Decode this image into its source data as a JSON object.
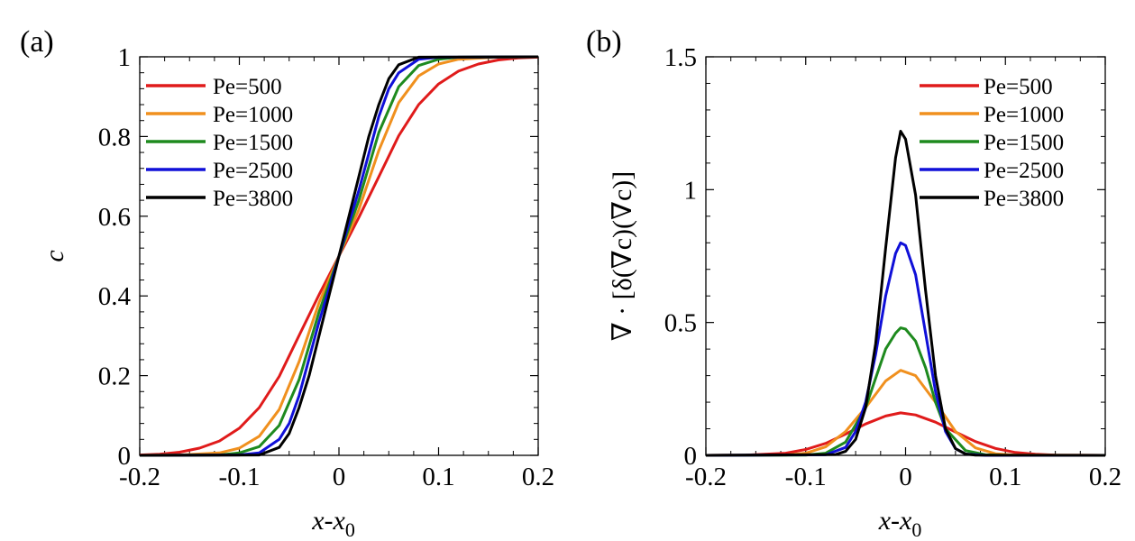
{
  "chart_data": [
    {
      "panel_label": "(a)",
      "type": "line",
      "xlabel": "x-x",
      "xlabel_sub": "0",
      "ylabel": "c",
      "xlim": [
        -0.2,
        0.2
      ],
      "ylim": [
        0,
        1
      ],
      "xticks": [
        "-0.2",
        "-0.1",
        "0",
        "0.1",
        "0.2"
      ],
      "yticks": [
        "0",
        "0.2",
        "0.4",
        "0.6",
        "0.8",
        "1"
      ],
      "legend": "top-left",
      "series": [
        {
          "name": "Pe=500",
          "color": "#e01b1b",
          "x": [
            -0.2,
            -0.18,
            -0.16,
            -0.14,
            -0.12,
            -0.1,
            -0.08,
            -0.06,
            -0.04,
            -0.02,
            0,
            0.02,
            0.04,
            0.06,
            0.08,
            0.1,
            0.12,
            0.14,
            0.16,
            0.18,
            0.2
          ],
          "y": [
            0.001,
            0.003,
            0.008,
            0.018,
            0.036,
            0.068,
            0.12,
            0.198,
            0.301,
            0.403,
            0.5,
            0.597,
            0.699,
            0.802,
            0.88,
            0.932,
            0.964,
            0.982,
            0.992,
            0.997,
            0.999
          ]
        },
        {
          "name": "Pe=1000",
          "color": "#f0901e",
          "x": [
            -0.2,
            -0.16,
            -0.12,
            -0.1,
            -0.08,
            -0.06,
            -0.04,
            -0.02,
            0,
            0.02,
            0.04,
            0.06,
            0.08,
            0.1,
            0.12,
            0.16,
            0.2
          ],
          "y": [
            0,
            0.001,
            0.006,
            0.018,
            0.048,
            0.115,
            0.235,
            0.383,
            0.5,
            0.617,
            0.765,
            0.885,
            0.952,
            0.982,
            0.994,
            0.999,
            1
          ]
        },
        {
          "name": "Pe=1500",
          "color": "#1e8a1e",
          "x": [
            -0.2,
            -0.12,
            -0.1,
            -0.08,
            -0.06,
            -0.04,
            -0.02,
            0,
            0.02,
            0.04,
            0.06,
            0.08,
            0.1,
            0.12,
            0.2
          ],
          "y": [
            0,
            0.001,
            0.006,
            0.022,
            0.075,
            0.19,
            0.36,
            0.5,
            0.64,
            0.81,
            0.925,
            0.978,
            0.994,
            0.999,
            1
          ]
        },
        {
          "name": "Pe=2500",
          "color": "#1010d8",
          "x": [
            -0.2,
            -0.1,
            -0.08,
            -0.06,
            -0.05,
            -0.04,
            -0.02,
            0,
            0.02,
            0.04,
            0.05,
            0.06,
            0.08,
            0.1,
            0.2
          ],
          "y": [
            0,
            0.001,
            0.006,
            0.04,
            0.08,
            0.15,
            0.335,
            0.5,
            0.665,
            0.85,
            0.92,
            0.96,
            0.994,
            0.999,
            1
          ]
        },
        {
          "name": "Pe=3800",
          "color": "#000000",
          "x": [
            -0.2,
            -0.08,
            -0.06,
            -0.05,
            -0.04,
            -0.03,
            -0.02,
            -0.01,
            0,
            0.01,
            0.02,
            0.03,
            0.04,
            0.05,
            0.06,
            0.08,
            0.2
          ],
          "y": [
            0,
            0.001,
            0.02,
            0.055,
            0.12,
            0.2,
            0.3,
            0.4,
            0.5,
            0.6,
            0.7,
            0.8,
            0.88,
            0.945,
            0.98,
            0.999,
            1
          ]
        }
      ]
    },
    {
      "panel_label": "(b)",
      "type": "line",
      "xlabel": "x-x",
      "xlabel_sub": "0",
      "ylabel": "∇ · [δ(∇c)(∇c)]",
      "xlim": [
        -0.2,
        0.2
      ],
      "ylim": [
        0,
        1.5
      ],
      "xticks": [
        "-0.2",
        "-0.1",
        "0",
        "0.1",
        "0.2"
      ],
      "yticks": [
        "0",
        "0.5",
        "1",
        "1.5"
      ],
      "legend": "top-right",
      "series": [
        {
          "name": "Pe=500",
          "color": "#e01b1b",
          "x": [
            -0.2,
            -0.16,
            -0.12,
            -0.1,
            -0.08,
            -0.06,
            -0.04,
            -0.02,
            -0.005,
            0.01,
            0.03,
            0.05,
            0.07,
            0.09,
            0.11,
            0.13,
            0.15,
            0.2
          ],
          "y": [
            0,
            0.001,
            0.008,
            0.022,
            0.045,
            0.08,
            0.118,
            0.148,
            0.16,
            0.152,
            0.125,
            0.088,
            0.052,
            0.026,
            0.011,
            0.004,
            0.001,
            0
          ]
        },
        {
          "name": "Pe=1000",
          "color": "#f0901e",
          "x": [
            -0.2,
            -0.12,
            -0.1,
            -0.08,
            -0.06,
            -0.04,
            -0.02,
            -0.005,
            0.01,
            0.03,
            0.05,
            0.07,
            0.09,
            0.11,
            0.2
          ],
          "y": [
            0,
            0.001,
            0.008,
            0.032,
            0.09,
            0.18,
            0.28,
            0.32,
            0.3,
            0.2,
            0.09,
            0.028,
            0.006,
            0.001,
            0
          ]
        },
        {
          "name": "Pe=1500",
          "color": "#1e8a1e",
          "x": [
            -0.2,
            -0.1,
            -0.08,
            -0.06,
            -0.04,
            -0.03,
            -0.02,
            -0.01,
            -0.005,
            0,
            0.01,
            0.02,
            0.03,
            0.04,
            0.06,
            0.08,
            0.1,
            0.2
          ],
          "y": [
            0,
            0.001,
            0.008,
            0.05,
            0.18,
            0.29,
            0.4,
            0.46,
            0.48,
            0.475,
            0.43,
            0.33,
            0.2,
            0.1,
            0.018,
            0.002,
            0,
            0
          ]
        },
        {
          "name": "Pe=2500",
          "color": "#1010d8",
          "x": [
            -0.2,
            -0.08,
            -0.06,
            -0.05,
            -0.04,
            -0.03,
            -0.02,
            -0.01,
            -0.005,
            0,
            0.01,
            0.02,
            0.03,
            0.04,
            0.05,
            0.06,
            0.08,
            0.2
          ],
          "y": [
            0,
            0.002,
            0.03,
            0.09,
            0.2,
            0.38,
            0.6,
            0.76,
            0.8,
            0.79,
            0.68,
            0.46,
            0.24,
            0.09,
            0.025,
            0.005,
            0,
            0
          ]
        },
        {
          "name": "Pe=3800",
          "color": "#000000",
          "x": [
            -0.2,
            -0.07,
            -0.06,
            -0.05,
            -0.04,
            -0.03,
            -0.02,
            -0.01,
            -0.005,
            0,
            0.01,
            0.02,
            0.03,
            0.04,
            0.05,
            0.06,
            0.07,
            0.2
          ],
          "y": [
            0,
            0.003,
            0.015,
            0.06,
            0.18,
            0.42,
            0.78,
            1.12,
            1.22,
            1.19,
            0.98,
            0.62,
            0.3,
            0.1,
            0.025,
            0.005,
            0.001,
            0
          ]
        }
      ]
    }
  ]
}
